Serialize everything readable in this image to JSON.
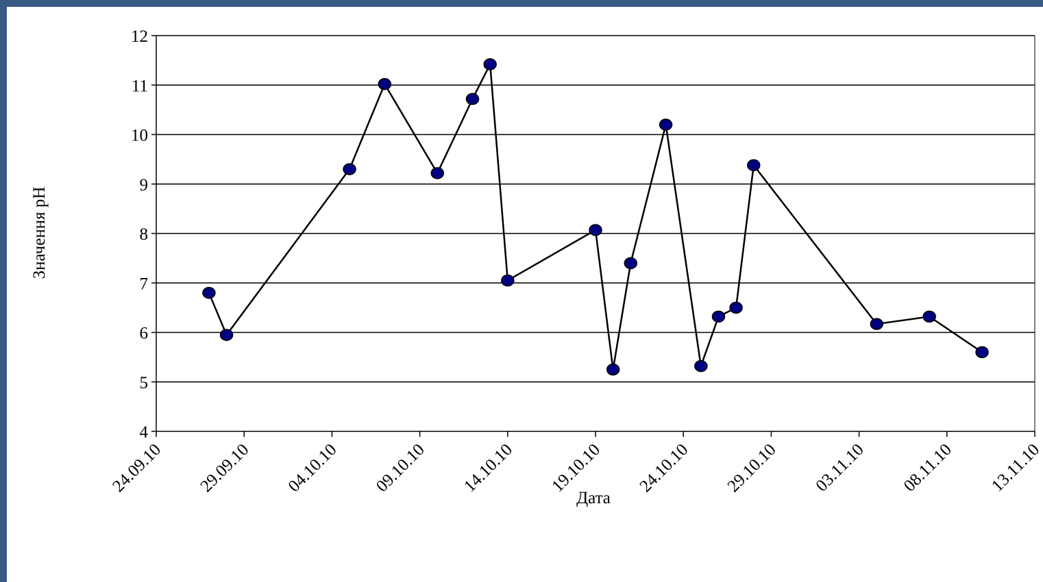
{
  "chart_data": {
    "type": "line",
    "title": "",
    "xlabel": "Дата",
    "ylabel": "Значення pH",
    "ylim": [
      4,
      12
    ],
    "yticks": [
      "4",
      "5",
      "6",
      "7",
      "8",
      "9",
      "10",
      "11",
      "12"
    ],
    "xlim": [
      "2010-09-24",
      "2010-11-13"
    ],
    "xticks": [
      "24.09.10",
      "29.09.10",
      "04.10.10",
      "09.10.10",
      "14.10.10",
      "19.10.10",
      "24.10.10",
      "29.10.10",
      "03.11.10",
      "08.11.10",
      "13.11.10"
    ],
    "grid": "horizontal",
    "legend": "none",
    "colors": {
      "line": "#000000",
      "marker_fill": "#000080",
      "marker_stroke": "#000000",
      "grid": "#000000"
    },
    "series": [
      {
        "points": [
          {
            "x": "2010-09-27",
            "y": 6.8
          },
          {
            "x": "2010-09-28",
            "y": 5.95
          },
          {
            "x": "2010-10-05",
            "y": 9.3
          },
          {
            "x": "2010-10-07",
            "y": 11.02
          },
          {
            "x": "2010-10-10",
            "y": 9.22
          },
          {
            "x": "2010-10-12",
            "y": 10.72
          },
          {
            "x": "2010-10-13",
            "y": 11.42
          },
          {
            "x": "2010-10-14",
            "y": 7.05
          },
          {
            "x": "2010-10-19",
            "y": 8.07
          },
          {
            "x": "2010-10-20",
            "y": 5.25
          },
          {
            "x": "2010-10-21",
            "y": 7.4
          },
          {
            "x": "2010-10-23",
            "y": 10.2
          },
          {
            "x": "2010-10-25",
            "y": 5.32
          },
          {
            "x": "2010-10-26",
            "y": 6.32
          },
          {
            "x": "2010-10-27",
            "y": 6.5
          },
          {
            "x": "2010-10-28",
            "y": 9.38
          },
          {
            "x": "2010-11-04",
            "y": 6.17
          },
          {
            "x": "2010-11-07",
            "y": 6.32
          },
          {
            "x": "2010-11-10",
            "y": 5.6
          }
        ]
      }
    ]
  }
}
